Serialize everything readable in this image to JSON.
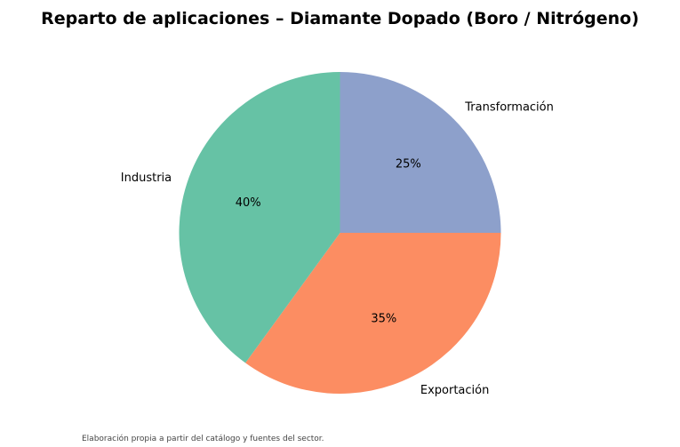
{
  "chart_data": {
    "type": "pie",
    "title": "Reparto de aplicaciones – Diamante Dopado (Boro / Nitrógeno)",
    "slices": [
      {
        "label": "Transformación",
        "value": 25,
        "pct_label": "25%",
        "color": "#8da0cb"
      },
      {
        "label": "Exportación",
        "value": 35,
        "pct_label": "35%",
        "color": "#fc8d62"
      },
      {
        "label": "Industria",
        "value": 40,
        "pct_label": "40%",
        "color": "#66c2a5"
      }
    ],
    "start_angle_deg": 90,
    "direction": "clockwise",
    "legend": "none"
  },
  "footer": {
    "source_note": "Elaboración propia a partir del catálogo y fuentes del sector."
  }
}
